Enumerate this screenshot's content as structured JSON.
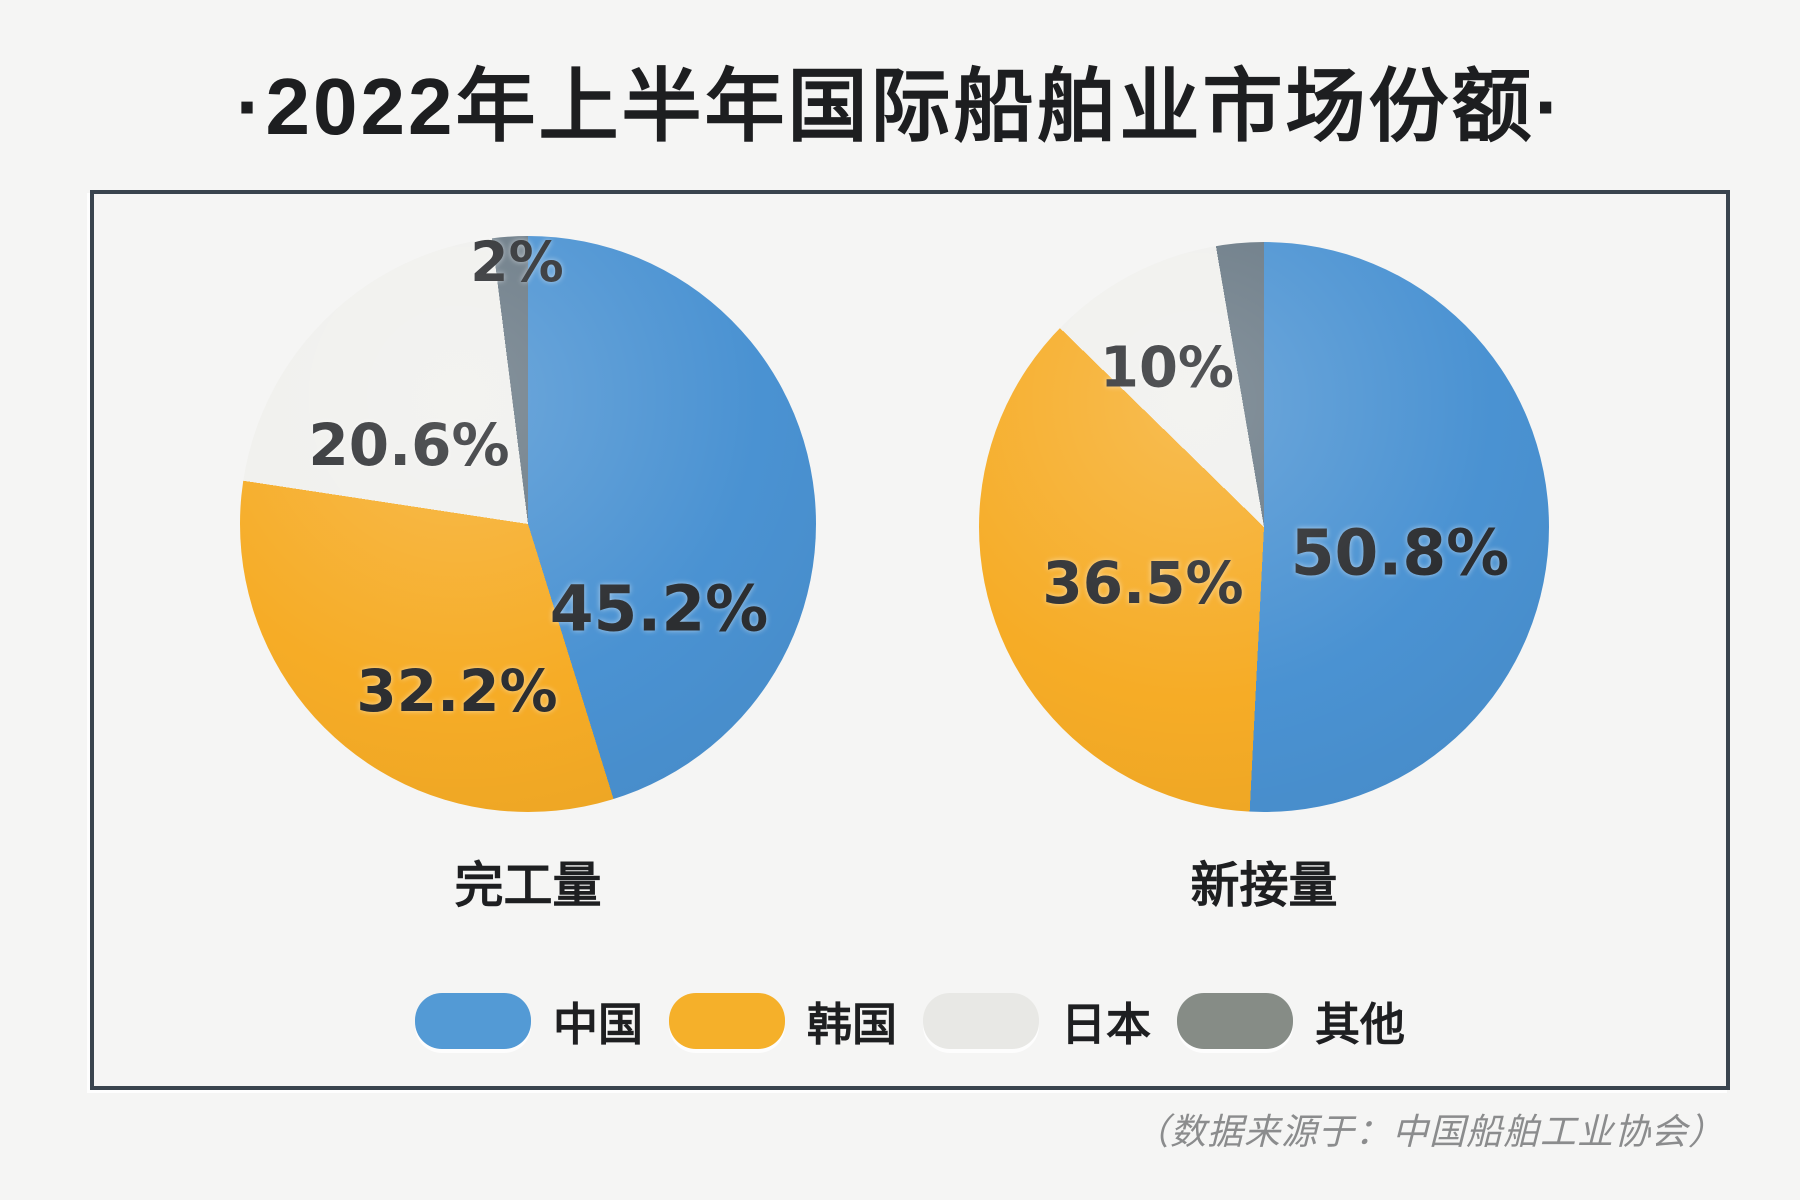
{
  "title": "·2022年上半年国际船舶业市场份额·",
  "source_note": "（数据来源于：中国船舶工业协会）",
  "panel": {
    "border_color": "#39444e",
    "background": "#f5f5f4"
  },
  "legend": {
    "position": "bottom-center",
    "items": [
      {
        "label": "中国",
        "color": "#539ad5"
      },
      {
        "label": "韩国",
        "color": "#f5b02a"
      },
      {
        "label": "日本",
        "color": "#e8e8e5"
      },
      {
        "label": "其他",
        "color": "#868c86"
      }
    ]
  },
  "chart_data": [
    {
      "type": "pie",
      "title": "完工量",
      "categories": [
        "中国",
        "韩国",
        "日本",
        "其他"
      ],
      "values": [
        45.2,
        32.2,
        20.6,
        2.0
      ],
      "slice_labels": [
        "45.2%",
        "32.2%",
        "20.6%",
        "2%"
      ],
      "colors": [
        "#4a92d2",
        "#f6ac26",
        "#f0f0ed",
        "#687884"
      ],
      "unit": "%",
      "start_angle": "12-oclock",
      "direction": "clockwise",
      "legend_position": "bottom"
    },
    {
      "type": "pie",
      "title": "新接量",
      "categories": [
        "中国",
        "韩国",
        "日本",
        "其他"
      ],
      "values": [
        50.8,
        36.5,
        10.0,
        2.7
      ],
      "slice_labels": [
        "50.8%",
        "36.5%",
        "10%",
        null
      ],
      "colors": [
        "#4a92d2",
        "#f6ac26",
        "#f0f0ed",
        "#687884"
      ],
      "unit": "%",
      "start_angle": "12-oclock",
      "direction": "clockwise",
      "legend_position": "bottom"
    }
  ]
}
